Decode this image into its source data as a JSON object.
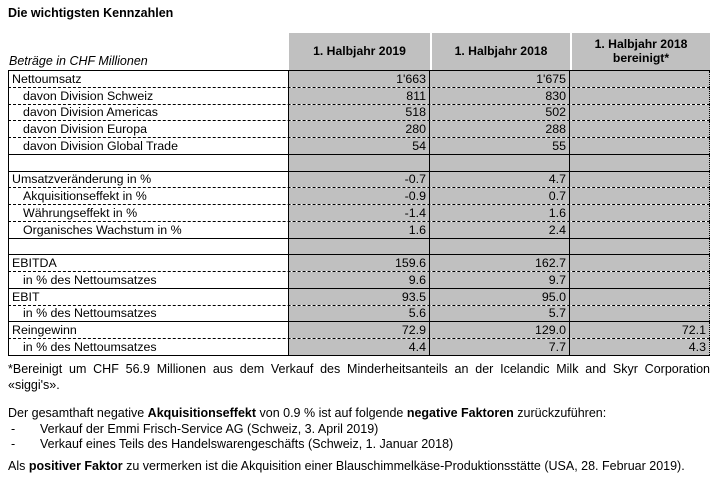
{
  "title": "Die wichtigsten Kennzahlen",
  "colors": {
    "header_cell_gray": "#c0c0c0",
    "value_cell_gray": "#c0c0c0",
    "text": "#000000",
    "background": "#ffffff"
  },
  "table": {
    "caption": "Beträge in CHF Millionen",
    "columns": [
      "1. Halbjahr 2019",
      "1. Halbjahr 2018",
      "1. Halbjahr 2018 bereinigt*"
    ],
    "rows": [
      {
        "label": "Nettoumsatz",
        "indent": false,
        "blank": false,
        "values": [
          "1'663",
          "1'675",
          ""
        ],
        "divider": "dashed"
      },
      {
        "label": "davon Division Schweiz",
        "indent": true,
        "blank": false,
        "values": [
          "811",
          "830",
          ""
        ],
        "divider": "dashed"
      },
      {
        "label": "davon Division Americas",
        "indent": true,
        "blank": false,
        "values": [
          "518",
          "502",
          ""
        ],
        "divider": "dashed"
      },
      {
        "label": "davon Division Europa",
        "indent": true,
        "blank": false,
        "values": [
          "280",
          "288",
          ""
        ],
        "divider": "dashed"
      },
      {
        "label": "davon Division Global Trade",
        "indent": true,
        "blank": false,
        "values": [
          "54",
          "55",
          ""
        ],
        "divider": "solid"
      },
      {
        "label": "",
        "indent": false,
        "blank": true,
        "values": [
          "",
          "",
          ""
        ],
        "divider": "solid"
      },
      {
        "label": "Umsatzveränderung in %",
        "indent": false,
        "blank": false,
        "values": [
          "-0.7",
          "4.7",
          ""
        ],
        "divider": "dashed"
      },
      {
        "label": "Akquisitionseffekt in %",
        "indent": true,
        "blank": false,
        "values": [
          "-0.9",
          "0.7",
          ""
        ],
        "divider": "dashed"
      },
      {
        "label": "Währungseffekt in %",
        "indent": true,
        "blank": false,
        "values": [
          "-1.4",
          "1.6",
          ""
        ],
        "divider": "dashed"
      },
      {
        "label": "Organisches Wachstum in %",
        "indent": true,
        "blank": false,
        "values": [
          "1.6",
          "2.4",
          ""
        ],
        "divider": "solid"
      },
      {
        "label": "",
        "indent": false,
        "blank": true,
        "values": [
          "",
          "",
          ""
        ],
        "divider": "solid"
      },
      {
        "label": "EBITDA",
        "indent": false,
        "blank": false,
        "values": [
          "159.6",
          "162.7",
          ""
        ],
        "divider": "dashed"
      },
      {
        "label": "in % des Nettoumsatzes",
        "indent": true,
        "blank": false,
        "values": [
          "9.6",
          "9.7",
          ""
        ],
        "divider": "solid"
      },
      {
        "label": "EBIT",
        "indent": false,
        "blank": false,
        "values": [
          "93.5",
          "95.0",
          ""
        ],
        "divider": "dashed"
      },
      {
        "label": "in % des Nettoumsatzes",
        "indent": true,
        "blank": false,
        "values": [
          "5.6",
          "5.7",
          ""
        ],
        "divider": "solid"
      },
      {
        "label": "Reingewinn",
        "indent": false,
        "blank": false,
        "values": [
          "72.9",
          "129.0",
          "72.1"
        ],
        "divider": "dashed"
      },
      {
        "label": "in % des Nettoumsatzes",
        "indent": true,
        "blank": false,
        "values": [
          "4.4",
          "7.7",
          "4.3"
        ],
        "divider": "solid"
      }
    ]
  },
  "notes": {
    "adjusted": "*Bereinigt um CHF 56.9 Millionen aus dem Verkauf des Minderheitsanteils an der Icelandic Milk and Skyr Corporation «siggi's».",
    "negative_intro": [
      {
        "text": "Der gesamthaft negative "
      },
      {
        "text": "Akquisitionseffekt",
        "bold": true
      },
      {
        "text": " von 0.9 % ist auf folgende "
      },
      {
        "text": "negative Faktoren",
        "bold": true
      },
      {
        "text": " zurückzuführen:"
      }
    ],
    "bullet_marker": "-",
    "negative_bullets": [
      "Verkauf der Emmi Frisch-Service AG (Schweiz, 3. April 2019)",
      "Verkauf eines Teils des Handelswarengeschäfts (Schweiz, 1. Januar 2018)"
    ],
    "positive": [
      {
        "text": "Als "
      },
      {
        "text": "positiver Faktor",
        "bold": true
      },
      {
        "text": " zu vermerken ist die Akquisition einer Blauschimmelkäse-Produktionsstätte (USA, 28. Februar 2019)."
      }
    ]
  }
}
